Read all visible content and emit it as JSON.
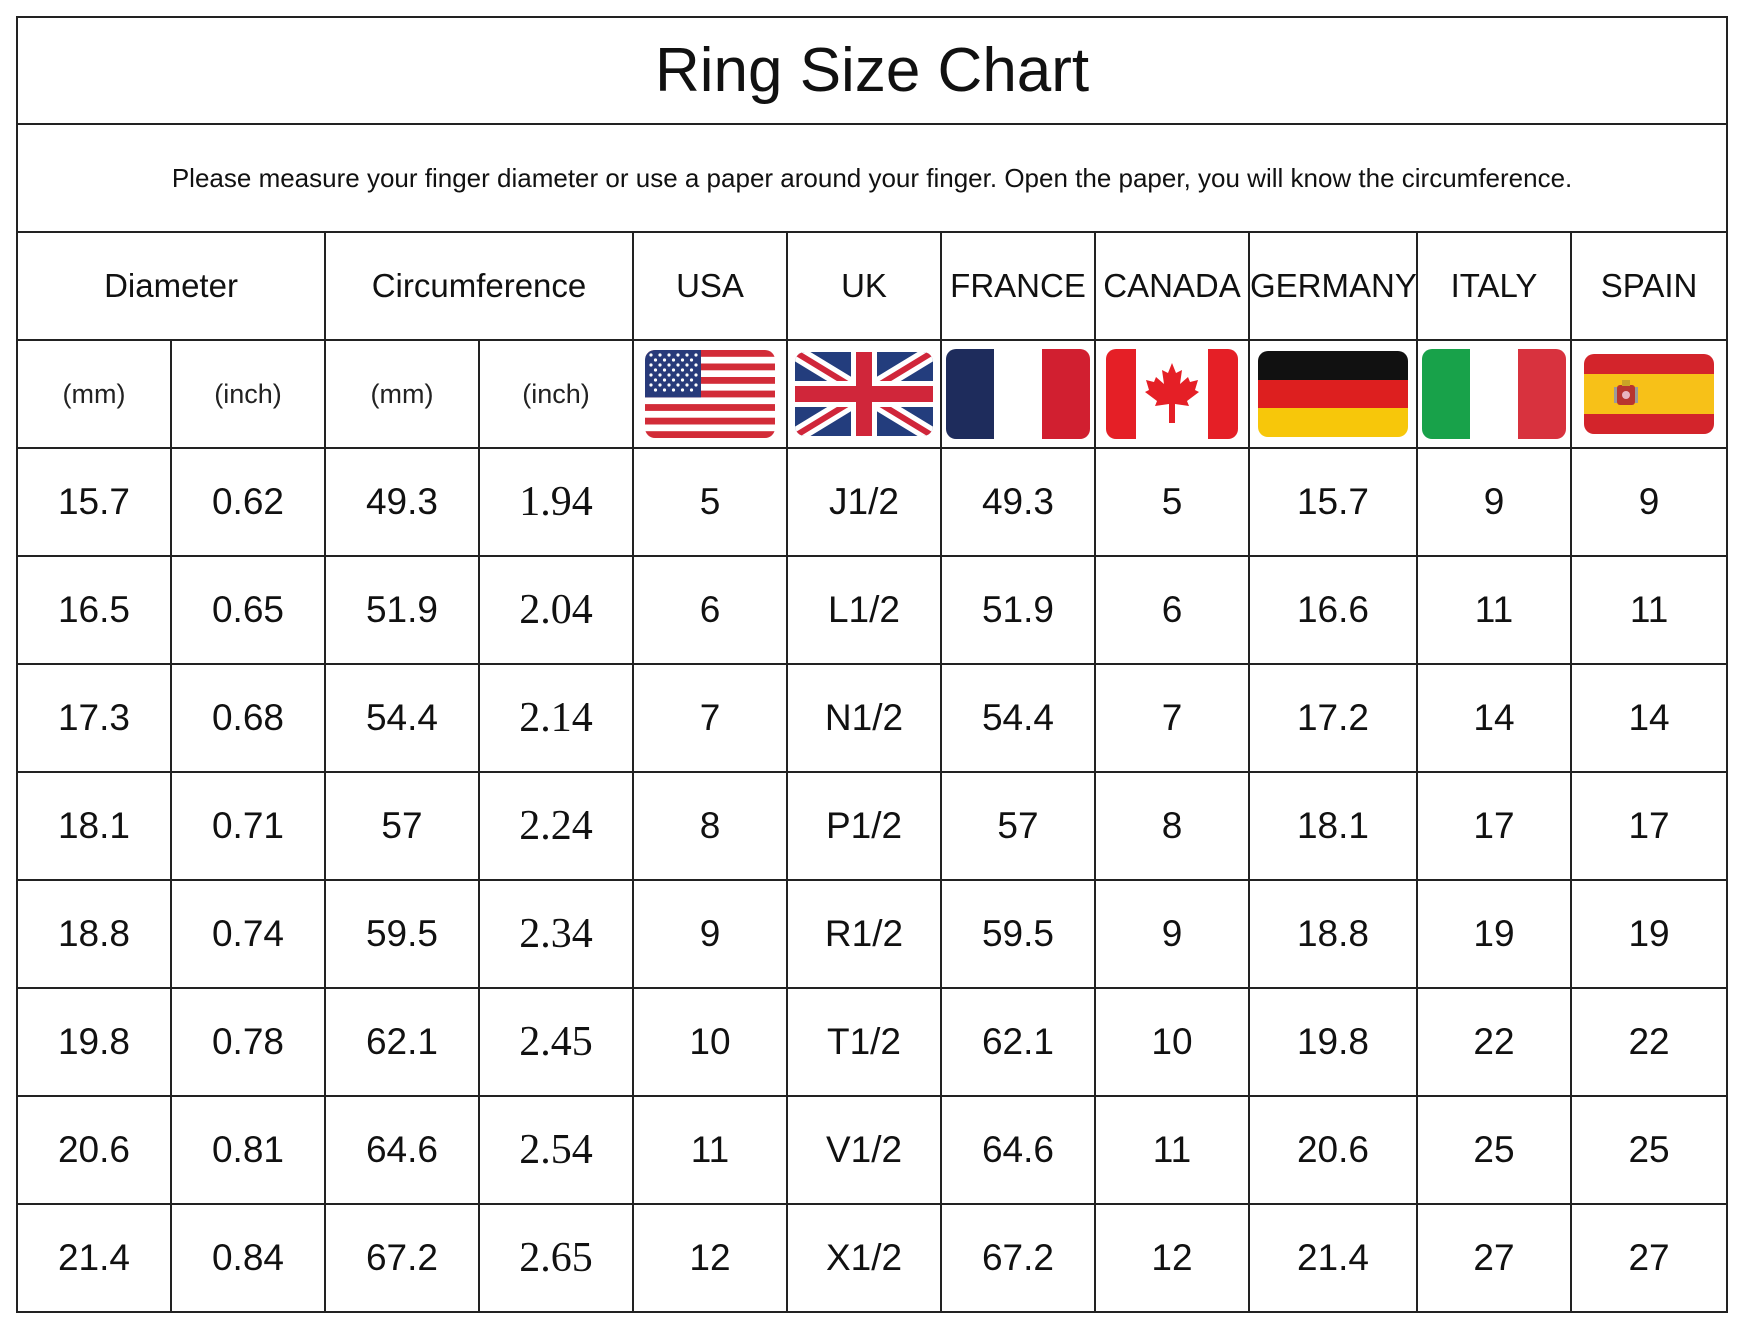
{
  "title": "Ring Size Chart",
  "instruction": "Please measure your finger diameter or use a paper around your finger. Open the paper, you will know the circumference.",
  "headers": {
    "diameter": "Diameter",
    "circumference": "Circumference",
    "countries": [
      "USA",
      "UK",
      "FRANCE",
      "CANADA",
      "GERMANY",
      "ITALY",
      "SPAIN"
    ]
  },
  "units": {
    "diameter_mm": "(mm)",
    "diameter_inch": "(inch)",
    "circumference_mm": "(mm)",
    "circumference_inch": "(inch)"
  },
  "flags": [
    "usa-flag-icon",
    "uk-flag-icon",
    "france-flag-icon",
    "canada-flag-icon",
    "germany-flag-icon",
    "italy-flag-icon",
    "spain-flag-icon"
  ],
  "colors": {
    "border": "#222222",
    "usa_red": "#d22c38",
    "usa_blue": "#283a7a",
    "uk_blue": "#233d7d",
    "uk_red": "#d0263a",
    "france_blue": "#1e2c5c",
    "france_red": "#d11f30",
    "canada_red": "#e51f26",
    "germany_black": "#111111",
    "germany_red": "#dd1f1f",
    "germany_gold": "#f7c70a",
    "italy_green": "#18a24a",
    "italy_red": "#d8323e",
    "spain_red": "#d3242b",
    "spain_yellow": "#f7c118"
  },
  "rows": [
    [
      "15.7",
      "0.62",
      "49.3",
      "1.94",
      "5",
      "J1/2",
      "49.3",
      "5",
      "15.7",
      "9",
      "9"
    ],
    [
      "16.5",
      "0.65",
      "51.9",
      "2.04",
      "6",
      "L1/2",
      "51.9",
      "6",
      "16.6",
      "11",
      "11"
    ],
    [
      "17.3",
      "0.68",
      "54.4",
      "2.14",
      "7",
      "N1/2",
      "54.4",
      "7",
      "17.2",
      "14",
      "14"
    ],
    [
      "18.1",
      "0.71",
      "57",
      "2.24",
      "8",
      "P1/2",
      "57",
      "8",
      "18.1",
      "17",
      "17"
    ],
    [
      "18.8",
      "0.74",
      "59.5",
      "2.34",
      "9",
      "R1/2",
      "59.5",
      "9",
      "18.8",
      "19",
      "19"
    ],
    [
      "19.8",
      "0.78",
      "62.1",
      "2.45",
      "10",
      "T1/2",
      "62.1",
      "10",
      "19.8",
      "22",
      "22"
    ],
    [
      "20.6",
      "0.81",
      "64.6",
      "2.54",
      "11",
      "V1/2",
      "64.6",
      "11",
      "20.6",
      "25",
      "25"
    ],
    [
      "21.4",
      "0.84",
      "67.2",
      "2.65",
      "12",
      "X1/2",
      "67.2",
      "12",
      "21.4",
      "27",
      "27"
    ]
  ]
}
